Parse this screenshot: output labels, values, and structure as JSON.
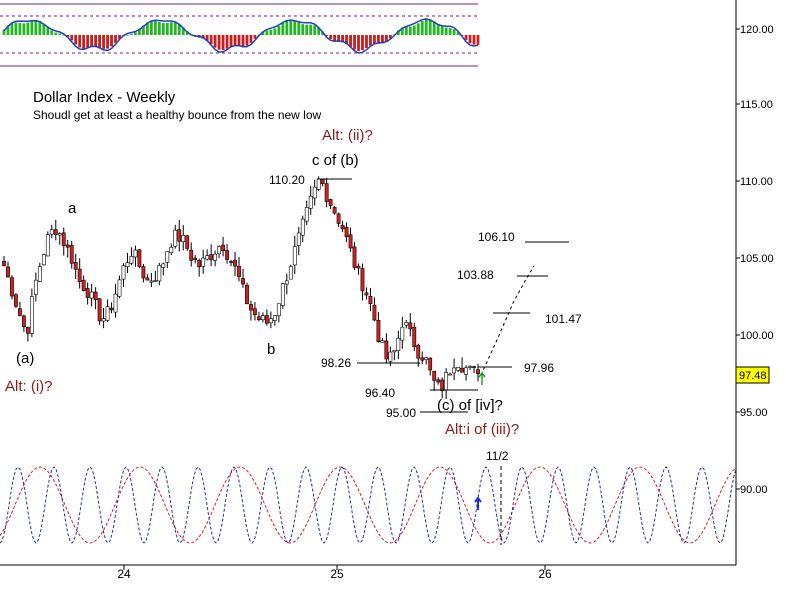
{
  "chart_data": {
    "type": "candlestick",
    "title": "Dollar Index - Weekly",
    "subtitle": "Shoudl get at least a healthy bounce from the new low",
    "x_ticks": [
      "24",
      "25",
      "26"
    ],
    "y_ticks": [
      "120.00",
      "115.00",
      "110.00",
      "105.00",
      "100.00",
      "95.00",
      "90.00"
    ],
    "ylim": [
      88,
      122
    ],
    "last_price": "97.48",
    "price_levels": [
      {
        "label": "110.20",
        "value": 110.2
      },
      {
        "label": "106.10",
        "value": 106.1
      },
      {
        "label": "103.88",
        "value": 103.88
      },
      {
        "label": "101.47",
        "value": 101.47
      },
      {
        "label": "98.26",
        "value": 98.26
      },
      {
        "label": "97.96",
        "value": 97.96
      },
      {
        "label": "96.40",
        "value": 96.4
      },
      {
        "label": "95.00",
        "value": 95.0
      }
    ],
    "wave_labels": [
      "(a)",
      "a",
      "b",
      "c of (b)",
      "(c) of [iv]?"
    ],
    "alt_labels": [
      "Alt: (i)?",
      "Alt: (ii)?",
      "Alt:i of (iii)?"
    ],
    "date_marker": "11/2",
    "price_path": [
      104.5,
      103.0,
      101.5,
      100.0,
      103.0,
      105.0,
      106.5,
      107.0,
      106.0,
      105.0,
      103.5,
      103.0,
      102.0,
      101.0,
      101.5,
      103.0,
      104.5,
      105.5,
      104.5,
      103.5,
      103.8,
      104.5,
      106.0,
      106.5,
      106.0,
      105.0,
      104.5,
      105.0,
      105.5,
      106.0,
      105.0,
      104.0,
      102.5,
      101.5,
      101.0,
      100.8,
      101.5,
      103.0,
      104.5,
      106.0,
      107.5,
      109.0,
      110.2,
      109.0,
      108.0,
      107.0,
      105.5,
      104.0,
      103.0,
      101.5,
      99.5,
      98.26,
      99.0,
      101.0,
      100.0,
      99.0,
      98.5,
      97.0,
      96.4,
      97.5,
      98.5,
      98.0,
      97.6,
      97.48
    ],
    "series": [
      {
        "name": "weekly-price",
        "role": "candles"
      },
      {
        "name": "oscillator-histogram",
        "role": "upper-panel"
      },
      {
        "name": "cycle-red",
        "role": "lower-panel"
      },
      {
        "name": "cycle-blue",
        "role": "lower-panel"
      }
    ],
    "colors": {
      "up_candle": "#ffffff",
      "down_candle": "#d42020",
      "hist_positive": "#22b822",
      "hist_negative": "#c81e1e",
      "oscillator_line": "#2040c0",
      "cycle_red": "#d02020",
      "cycle_blue": "#2030b0",
      "band_purple": "#7a1f7a",
      "alt_text": "#8b1a1a",
      "last_price_badge": "#ffff00"
    }
  }
}
